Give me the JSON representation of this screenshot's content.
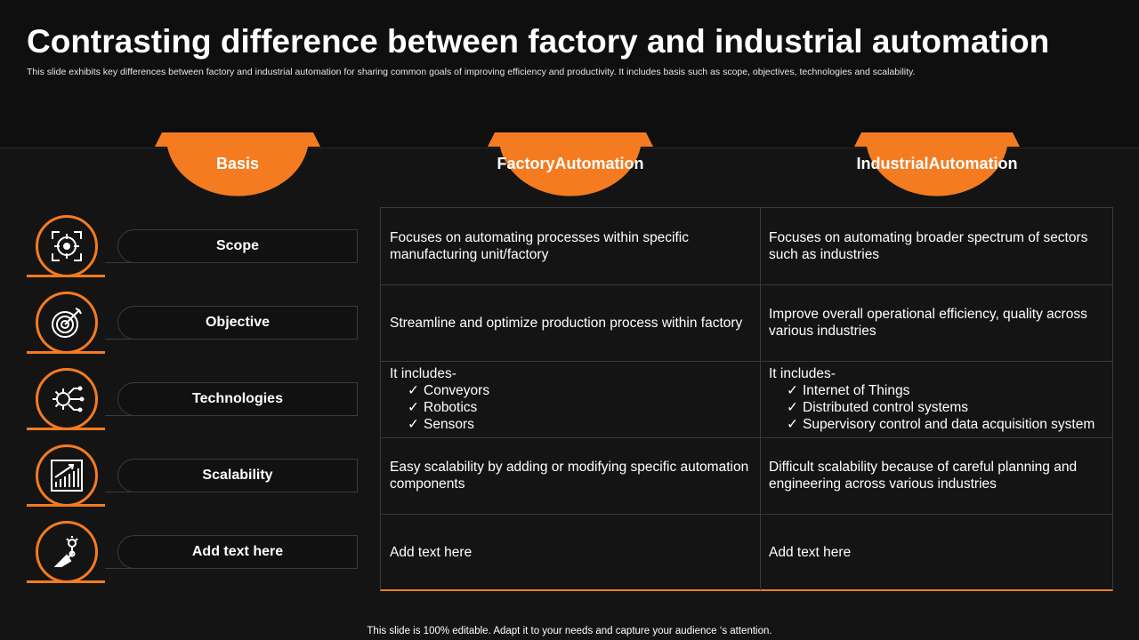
{
  "header": {
    "title": "Contrasting difference between factory and industrial automation",
    "subtitle": "This slide exhibits key differences between factory and industrial automation for sharing common goals of improving efficiency and productivity.  It includes basis such as scope, objectives, technologies and scalability."
  },
  "tabs": [
    {
      "label": "Basis"
    },
    {
      "label": "Factory\nAutomation"
    },
    {
      "label": "Industrial\nAutomation"
    }
  ],
  "rows": [
    {
      "label": "Scope",
      "icon": "scope-target-icon",
      "factory": "Focuses on automating processes within specific manufacturing unit/factory",
      "industrial": "Focuses on automating broader spectrum of sectors such as industries"
    },
    {
      "label": "Objective",
      "icon": "dartboard-icon",
      "factory": "Streamline and optimize production process within factory",
      "industrial": "Improve overall operational efficiency, quality across various industries"
    },
    {
      "label": "Technologies",
      "icon": "gear-circuit-icon",
      "factory_intro": "It includes-",
      "factory_items": [
        "Conveyors",
        "Robotics",
        "Sensors"
      ],
      "industrial_intro": "It includes-",
      "industrial_items": [
        "Internet  of Things",
        "Distributed control systems",
        "Supervisory  control and data acquisition system"
      ]
    },
    {
      "label": "Scalability",
      "icon": "growth-chart-icon",
      "factory": "Easy scalability by adding or modifying specific automation components",
      "industrial": "Difficult scalability because of careful planning and engineering across various industries"
    },
    {
      "label": "Add text here",
      "icon": "robotic-arm-icon",
      "factory": "Add text here",
      "industrial": "Add text here"
    }
  ],
  "footer": "This slide is 100% editable. Adapt it to your needs and capture your audience ‘s attention.",
  "colors": {
    "accent": "#f47b20",
    "background": "#141414"
  }
}
